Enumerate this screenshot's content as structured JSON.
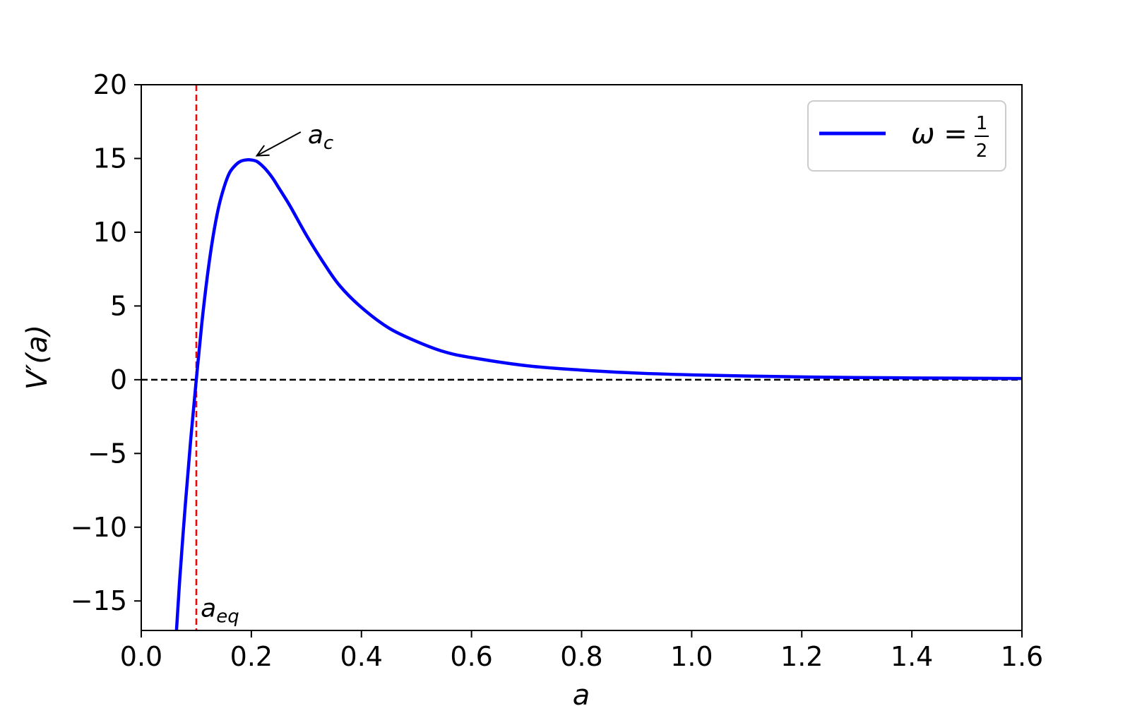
{
  "chart_data": {
    "type": "line",
    "title": "",
    "xlabel": "a",
    "ylabel": "V′(a)",
    "xlim": [
      0.0,
      1.6
    ],
    "ylim": [
      -17,
      20
    ],
    "xticks": [
      0.0,
      0.2,
      0.4,
      0.6,
      0.8,
      1.0,
      1.2,
      1.4,
      1.6
    ],
    "xtick_labels": [
      "0.0",
      "0.2",
      "0.4",
      "0.6",
      "0.8",
      "1.0",
      "1.2",
      "1.4",
      "1.6"
    ],
    "yticks": [
      -15,
      -10,
      -5,
      0,
      5,
      10,
      15,
      20
    ],
    "ytick_labels": [
      "−15",
      "−10",
      "−5",
      "0",
      "5",
      "10",
      "15",
      "20"
    ],
    "grid": false,
    "legend_position": "top-right",
    "series": [
      {
        "name": "ω = 1/2",
        "name_lhs": "ω =",
        "name_num": "1",
        "name_den": "2",
        "color": "#0000ff",
        "x": [
          0.064,
          0.07,
          0.08,
          0.09,
          0.1,
          0.11,
          0.12,
          0.13,
          0.14,
          0.15,
          0.16,
          0.17,
          0.18,
          0.19,
          0.2,
          0.21,
          0.22,
          0.23,
          0.24,
          0.25,
          0.27,
          0.3,
          0.33,
          0.36,
          0.4,
          0.45,
          0.5,
          0.55,
          0.6,
          0.7,
          0.8,
          0.9,
          1.0,
          1.1,
          1.2,
          1.3,
          1.4,
          1.5,
          1.6
        ],
        "y": [
          -17.0,
          -13.5,
          -8.5,
          -4.0,
          0.0,
          3.8,
          7.0,
          9.6,
          11.6,
          13.0,
          14.0,
          14.5,
          14.8,
          14.9,
          14.9,
          14.8,
          14.5,
          14.1,
          13.6,
          13.0,
          11.8,
          9.8,
          8.0,
          6.4,
          4.9,
          3.5,
          2.6,
          1.9,
          1.5,
          0.95,
          0.65,
          0.45,
          0.33,
          0.25,
          0.19,
          0.15,
          0.12,
          0.1,
          0.08
        ]
      }
    ],
    "reference_lines": [
      {
        "orientation": "horizontal",
        "value": 0,
        "color": "#000000",
        "style": "dashed"
      },
      {
        "orientation": "vertical",
        "value": 0.1,
        "color": "#ff0000",
        "style": "dashed"
      }
    ],
    "annotations": [
      {
        "base": "a",
        "sub": "c",
        "text": "a_c",
        "x": 0.21,
        "y": 14.9,
        "with_arrow": true,
        "text_x": 0.3,
        "text_y": 16.6
      },
      {
        "base": "a",
        "sub": "eq",
        "text": "a_eq",
        "x": 0.108,
        "y": -15.5,
        "with_arrow": false
      }
    ]
  }
}
